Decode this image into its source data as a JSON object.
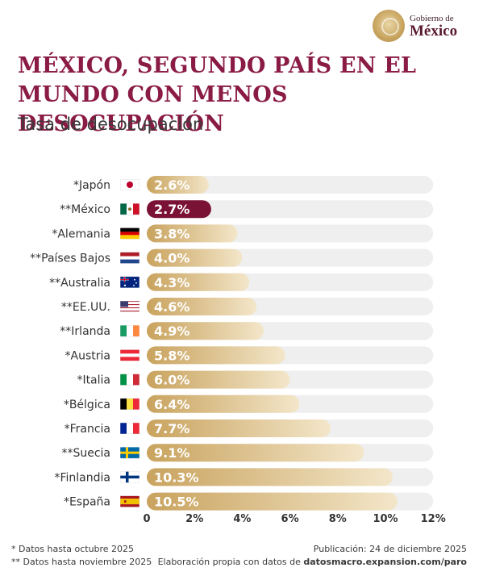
{
  "brand": {
    "line1": "Gobierno de",
    "line2": "México"
  },
  "header": {
    "title_line1": "MÉXICO, SEGUNDO PAÍS EN EL",
    "title_line2": "MUNDO CON MENOS DESOCUPACIÓN",
    "subtitle": "Tasa de desocupación"
  },
  "colors": {
    "highlight": "#7a1236",
    "bar_start": "#c9a35e",
    "bar_end": "#f3e6c9",
    "track": "#efefef",
    "title": "#8a1b45"
  },
  "chart_data": {
    "type": "bar",
    "orientation": "horizontal",
    "categories": [
      "*Japón",
      "**México",
      "*Alemania",
      "**Países Bajos",
      "**Australia",
      "**EE.UU.",
      "**Irlanda",
      "*Austria",
      "*Italia",
      "*Bélgica",
      "*Francia",
      "**Suecia",
      "*Finlandia",
      "*España"
    ],
    "flags": [
      "japan",
      "mexico",
      "germany",
      "netherlands",
      "australia",
      "usa",
      "ireland",
      "austria",
      "italy",
      "belgium",
      "france",
      "sweden",
      "finland",
      "spain"
    ],
    "values": [
      2.6,
      2.7,
      3.8,
      4.0,
      4.3,
      4.6,
      4.9,
      5.8,
      6.0,
      6.4,
      7.7,
      9.1,
      10.3,
      10.5
    ],
    "value_labels": [
      "2.6%",
      "2.7%",
      "3.8%",
      "4.0%",
      "4.3%",
      "4.6%",
      "4.9%",
      "5.8%",
      "6.0%",
      "6.4%",
      "7.7%",
      "9.1%",
      "10.3%",
      "10.5%"
    ],
    "highlight_index": 1,
    "x_ticks": [
      0,
      2,
      4,
      6,
      8,
      10,
      12
    ],
    "x_tick_labels": [
      "0",
      "2%",
      "4%",
      "6%",
      "8%",
      "10%",
      "12%"
    ],
    "xlim": [
      0,
      12
    ],
    "grid": false,
    "legend": "none"
  },
  "footnotes": {
    "left1": "* Datos hasta octubre 2025",
    "left2": "** Datos hasta noviembre 2025",
    "right1": "Publicación: 24 de diciembre 2025",
    "right2_prefix": "Elaboración propia con datos de ",
    "right2_source": "datosmacro.expansion.com/paro"
  }
}
